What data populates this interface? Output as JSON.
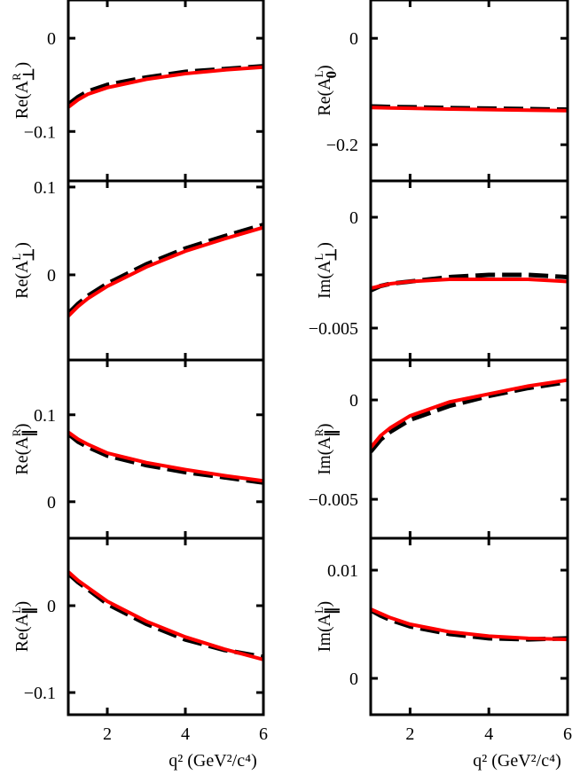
{
  "chart_data": [
    {
      "type": "line",
      "ylabel": {
        "text": "Re(A",
        "sup": "R",
        "sub": "⊥",
        "end": ")"
      },
      "x": [
        1,
        1.25,
        1.5,
        2,
        3,
        4,
        5,
        6
      ],
      "xlim": [
        1,
        6
      ],
      "xticks": [
        2,
        4,
        6
      ],
      "ylim": [
        -0.153,
        0.041
      ],
      "yticks": [
        {
          "value": -0.1,
          "label": "−0.1"
        },
        0
      ],
      "series": [
        {
          "color": "#000000",
          "linestyle": "dashed",
          "values": [
            -0.071,
            -0.063,
            -0.057,
            -0.05,
            -0.042,
            -0.036,
            -0.033,
            -0.03
          ]
        },
        {
          "color": "#ff0000",
          "linestyle": "solid",
          "values": [
            -0.074,
            -0.066,
            -0.06,
            -0.053,
            -0.044,
            -0.038,
            -0.034,
            -0.031
          ]
        }
      ]
    },
    {
      "type": "line",
      "ylabel": {
        "text": "Re(A",
        "sup": "L",
        "sub": "0",
        "end": ")"
      },
      "x": [
        1,
        1.25,
        1.5,
        2,
        3,
        4,
        5,
        6
      ],
      "xlim": [
        1,
        6
      ],
      "xticks": [
        2,
        4,
        6
      ],
      "ylim": [
        -0.268,
        0.072
      ],
      "yticks": [
        {
          "value": -0.2,
          "label": "−0.2"
        },
        0
      ],
      "series": [
        {
          "color": "#000000",
          "linestyle": "dashed",
          "values": [
            -0.128,
            -0.1285,
            -0.129,
            -0.1295,
            -0.131,
            -0.132,
            -0.133,
            -0.134
          ]
        },
        {
          "color": "#ff0000",
          "linestyle": "solid",
          "values": [
            -0.13,
            -0.1305,
            -0.131,
            -0.1315,
            -0.133,
            -0.134,
            -0.135,
            -0.136
          ]
        }
      ]
    },
    {
      "type": "line",
      "ylabel": {
        "text": "Re(A",
        "sup": "L",
        "sub": "⊥",
        "end": ")"
      },
      "x": [
        1,
        1.25,
        1.5,
        2,
        3,
        4,
        5,
        6
      ],
      "xlim": [
        1,
        6
      ],
      "xticks": [
        2,
        4,
        6
      ],
      "ylim": [
        -0.097,
        0.107
      ],
      "yticks": [
        0,
        0.1
      ],
      "series": [
        {
          "color": "#000000",
          "linestyle": "dashed",
          "values": [
            -0.044,
            -0.033,
            -0.024,
            -0.01,
            0.012,
            0.03,
            0.044,
            0.057
          ]
        },
        {
          "color": "#ff0000",
          "linestyle": "solid",
          "values": [
            -0.047,
            -0.036,
            -0.027,
            -0.013,
            0.009,
            0.027,
            0.041,
            0.054
          ]
        }
      ]
    },
    {
      "type": "line",
      "ylabel": {
        "text": "Im(A",
        "sup": "L",
        "sub": "⊥",
        "end": ")"
      },
      "x": [
        1,
        1.25,
        1.5,
        2,
        3,
        4,
        5,
        6
      ],
      "xlim": [
        1,
        6
      ],
      "xticks": [
        2,
        4,
        6
      ],
      "ylim": [
        -0.00644,
        0.00164
      ],
      "yticks": [
        {
          "value": -0.005,
          "label": "−0.005"
        },
        0
      ],
      "series": [
        {
          "color": "#000000",
          "linestyle": "dashed",
          "values": [
            -0.0033,
            -0.0031,
            -0.003,
            -0.0029,
            -0.0027,
            -0.0026,
            -0.0026,
            -0.0027
          ]
        },
        {
          "color": "#ff0000",
          "linestyle": "solid",
          "values": [
            -0.0032,
            -0.0031,
            -0.003,
            -0.0029,
            -0.0028,
            -0.0028,
            -0.0028,
            -0.0029
          ]
        }
      ]
    },
    {
      "type": "line",
      "ylabel": {
        "text": "Re(A",
        "sup": "R",
        "sub": "∥",
        "end": ")"
      },
      "x": [
        1,
        1.25,
        1.5,
        2,
        3,
        4,
        5,
        6
      ],
      "xlim": [
        1,
        6
      ],
      "xticks": [
        2,
        4,
        6
      ],
      "ylim": [
        -0.042,
        0.163
      ],
      "yticks": [
        0,
        0.1
      ],
      "series": [
        {
          "color": "#000000",
          "linestyle": "dashed",
          "values": [
            0.078,
            0.069,
            0.063,
            0.053,
            0.042,
            0.034,
            0.028,
            0.022
          ]
        },
        {
          "color": "#ff0000",
          "linestyle": "solid",
          "values": [
            0.08,
            0.072,
            0.066,
            0.056,
            0.045,
            0.037,
            0.03,
            0.024
          ]
        }
      ]
    },
    {
      "type": "line",
      "ylabel": {
        "text": "Im(A",
        "sup": "R",
        "sub": "∥",
        "end": ")"
      },
      "x": [
        1,
        1.25,
        1.5,
        2,
        3,
        4,
        5,
        6
      ],
      "xlim": [
        1,
        6
      ],
      "xticks": [
        2,
        4,
        6
      ],
      "ylim": [
        -0.00696,
        0.00201
      ],
      "yticks": [
        {
          "value": -0.005,
          "label": "−0.005"
        },
        0
      ],
      "series": [
        {
          "color": "#000000",
          "linestyle": "dashed",
          "values": [
            -0.0026,
            -0.002,
            -0.0016,
            -0.001,
            -0.0003,
            0.0002,
            0.0006,
            0.0009
          ]
        },
        {
          "color": "#ff0000",
          "linestyle": "solid",
          "values": [
            -0.0024,
            -0.0018,
            -0.0014,
            -0.0008,
            -0.0001,
            0.0003,
            0.0007,
            0.001
          ]
        }
      ]
    },
    {
      "type": "line",
      "ylabel": {
        "text": "Re(A",
        "sup": "L",
        "sub": "∥",
        "end": ")"
      },
      "xlabel": "q² (GeV²/c⁴)",
      "x": [
        1,
        1.25,
        1.5,
        2,
        3,
        4,
        5,
        6
      ],
      "xlim": [
        1,
        6
      ],
      "xticks": [
        2,
        4,
        6
      ],
      "ylim": [
        -0.1255,
        0.0776
      ],
      "yticks": [
        {
          "value": -0.1,
          "label": "−0.1"
        },
        0
      ],
      "series": [
        {
          "color": "#000000",
          "linestyle": "dashed",
          "values": [
            0.037,
            0.027,
            0.019,
            0.002,
            -0.021,
            -0.039,
            -0.051,
            -0.059
          ]
        },
        {
          "color": "#ff0000",
          "linestyle": "solid",
          "values": [
            0.039,
            0.029,
            0.021,
            0.005,
            -0.018,
            -0.036,
            -0.05,
            -0.062
          ]
        }
      ]
    },
    {
      "type": "line",
      "ylabel": {
        "text": "Im(A",
        "sup": "L",
        "sub": "∥",
        "end": ")"
      },
      "xlabel": "q² (GeV²/c⁴)",
      "x": [
        1,
        1.25,
        1.5,
        2,
        3,
        4,
        5,
        6
      ],
      "xlim": [
        1,
        6
      ],
      "xticks": [
        2,
        4,
        6
      ],
      "ylim": [
        -0.00336,
        0.01295
      ],
      "yticks": [
        0,
        0.01
      ],
      "series": [
        {
          "color": "#000000",
          "linestyle": "dashed",
          "values": [
            0.0063,
            0.0058,
            0.0054,
            0.0048,
            0.0041,
            0.0037,
            0.0036,
            0.0037
          ]
        },
        {
          "color": "#ff0000",
          "linestyle": "solid",
          "values": [
            0.0064,
            0.006,
            0.0056,
            0.005,
            0.0043,
            0.0039,
            0.0037,
            0.0036
          ]
        }
      ]
    }
  ]
}
